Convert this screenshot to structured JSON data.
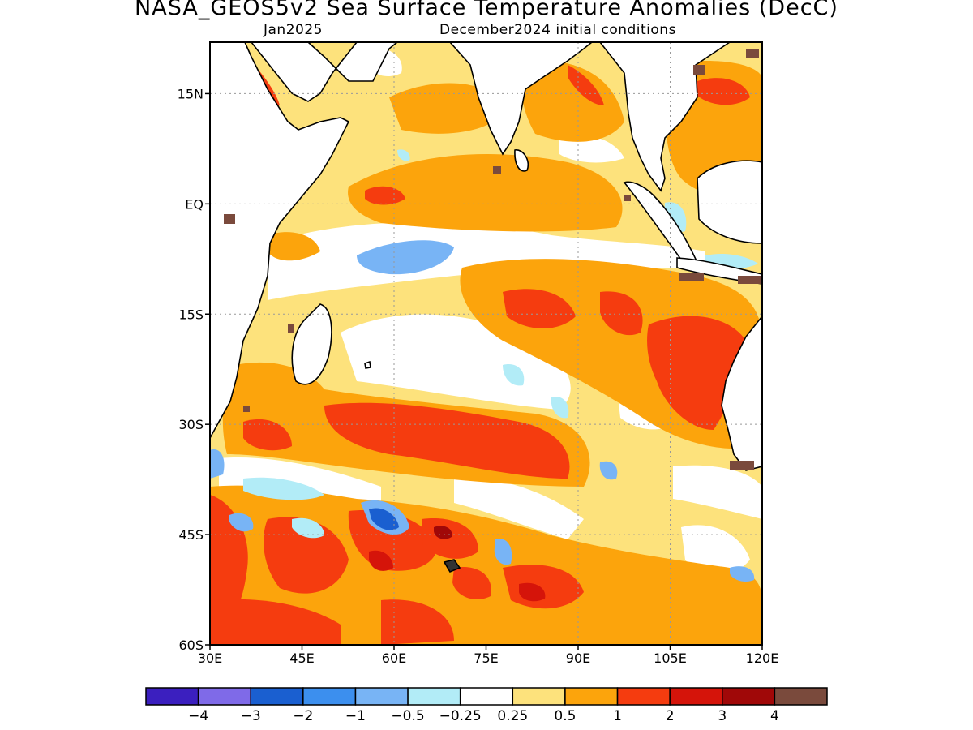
{
  "header": {
    "title": "NASA_GEOS5v2 Sea Surface Temperature Anomalies (DecC)",
    "month": "Jan2025",
    "init": "December2024 initial conditions"
  },
  "map": {
    "lat_labels": [
      "15N",
      "EQ",
      "15S",
      "30S",
      "45S",
      "60S"
    ],
    "lon_labels": [
      "30E",
      "45E",
      "60E",
      "75E",
      "90E",
      "105E",
      "120E"
    ],
    "lat_range": [
      -60,
      22
    ],
    "lon_range": [
      30,
      120
    ],
    "land_color": "#ffffff",
    "grid": true
  },
  "colorbar": {
    "colors": [
      "#3b1fbf",
      "#7f6ae8",
      "#1a5fd0",
      "#3c8fee",
      "#78b4f5",
      "#b2ecf7",
      "#ffffff",
      "#fde27c",
      "#fca40c",
      "#f53c0f",
      "#d5140a",
      "#a00808",
      "#7a4a3c"
    ],
    "labels": [
      "−4",
      "−3",
      "−2",
      "−1",
      "−0.5",
      "−0.25",
      "0.25",
      "0.5",
      "1",
      "2",
      "3",
      "4"
    ]
  }
}
